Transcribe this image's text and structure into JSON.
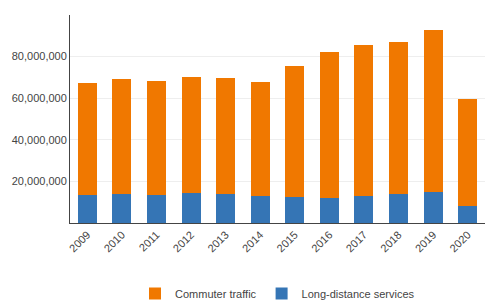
{
  "chart_data": {
    "type": "bar",
    "stacked": true,
    "categories": [
      "2009",
      "2010",
      "2011",
      "2012",
      "2013",
      "2014",
      "2015",
      "2016",
      "2017",
      "2018",
      "2019",
      "2020"
    ],
    "series": [
      {
        "name": "Long-distance services",
        "color": "#3575b5",
        "values": [
          13500000,
          14000000,
          13500000,
          14500000,
          14000000,
          13000000,
          12500000,
          12000000,
          13000000,
          14000000,
          15000000,
          8000000
        ]
      },
      {
        "name": "Commuter traffic",
        "color": "#f07800",
        "values": [
          54000000,
          55000000,
          55000000,
          55500000,
          55500000,
          55000000,
          63000000,
          70000000,
          72500000,
          73000000,
          78000000,
          51500000
        ]
      }
    ],
    "ylim": [
      0,
      100000000
    ],
    "yticks": [
      {
        "value": 20000000,
        "label": "20,000,000"
      },
      {
        "value": 40000000,
        "label": "40,000,000"
      },
      {
        "value": 60000000,
        "label": "60,000,000"
      },
      {
        "value": 80000000,
        "label": "80,000,000"
      }
    ],
    "grid": true,
    "legend": "bottom"
  }
}
